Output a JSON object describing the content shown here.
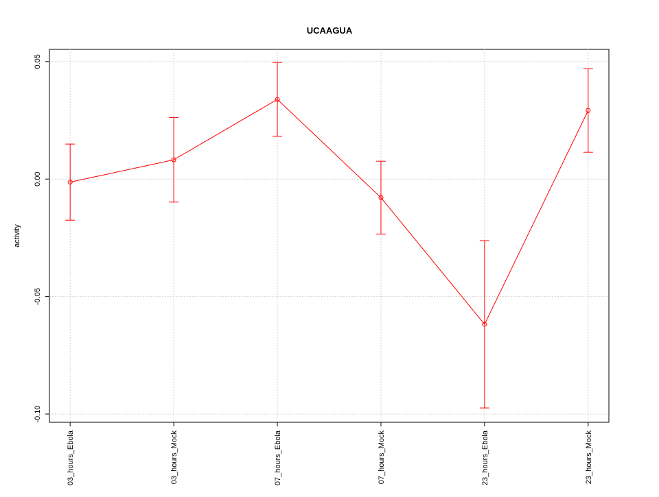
{
  "chart_data": {
    "type": "line",
    "title": "UCAAGUA",
    "ylabel": "activity",
    "categories": [
      "03_hours_Ebola",
      "03_hours_Mock",
      "07_hours_Ebola",
      "07_hours_Mock",
      "23_hours_Ebola",
      "23_hours_Mock"
    ],
    "values": [
      -0.0013,
      0.0082,
      0.0339,
      -0.0079,
      -0.0618,
      0.0292
    ],
    "errors": [
      0.0162,
      0.018,
      0.0157,
      0.0155,
      0.0356,
      0.0178
    ],
    "color": "#ff0000",
    "ylim": [
      -0.1035,
      0.0552
    ],
    "yticks": [
      {
        "value": -0.1,
        "label": "-0.10"
      },
      -0.05,
      {
        "value": 0,
        "label": "0.00"
      },
      0.05
    ],
    "grid": true
  }
}
